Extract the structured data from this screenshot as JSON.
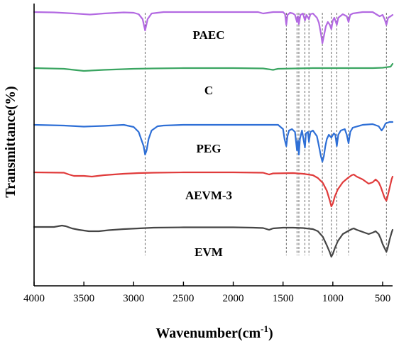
{
  "chart_data": {
    "type": "line",
    "title": "",
    "xlabel": "Wavenumber(cm",
    "xlabel_sup": "-1",
    "xlabel_close": ")",
    "ylabel": "Transmittance(%)",
    "xlim": [
      4000,
      400
    ],
    "x_reversed": true,
    "xticks": [
      "4000",
      "3500",
      "3000",
      "2500",
      "2000",
      "1500",
      "1000",
      "500"
    ],
    "grid": false,
    "legend": "inline-labels",
    "guide_lines_wavenumber": [
      2885,
      1467,
      1360,
      1341,
      1280,
      1240,
      1105,
      1015,
      960,
      842,
      462
    ],
    "series": [
      {
        "name": "PAEC",
        "color": "#b36ae2",
        "baseline": 17,
        "points": [
          [
            4000,
            0
          ],
          [
            3800,
            0.5
          ],
          [
            3600,
            2
          ],
          [
            3440,
            3.5
          ],
          [
            3300,
            2
          ],
          [
            3100,
            0.5
          ],
          [
            3000,
            1
          ],
          [
            2950,
            3
          ],
          [
            2910,
            10
          ],
          [
            2885,
            26
          ],
          [
            2860,
            10
          ],
          [
            2820,
            2
          ],
          [
            2700,
            0
          ],
          [
            2500,
            0
          ],
          [
            2000,
            0
          ],
          [
            1750,
            0
          ],
          [
            1700,
            2
          ],
          [
            1650,
            1
          ],
          [
            1600,
            0
          ],
          [
            1500,
            0
          ],
          [
            1480,
            3
          ],
          [
            1467,
            18
          ],
          [
            1455,
            4
          ],
          [
            1430,
            1
          ],
          [
            1400,
            2
          ],
          [
            1380,
            4
          ],
          [
            1360,
            14
          ],
          [
            1350,
            6
          ],
          [
            1341,
            17
          ],
          [
            1325,
            4
          ],
          [
            1300,
            2
          ],
          [
            1280,
            12
          ],
          [
            1265,
            4
          ],
          [
            1240,
            10
          ],
          [
            1225,
            3
          ],
          [
            1200,
            2
          ],
          [
            1160,
            8
          ],
          [
            1140,
            15
          ],
          [
            1120,
            30
          ],
          [
            1105,
            44
          ],
          [
            1090,
            34
          ],
          [
            1070,
            20
          ],
          [
            1050,
            14
          ],
          [
            1030,
            18
          ],
          [
            1015,
            24
          ],
          [
            1000,
            12
          ],
          [
            985,
            8
          ],
          [
            960,
            18
          ],
          [
            945,
            8
          ],
          [
            900,
            3
          ],
          [
            860,
            6
          ],
          [
            842,
            14
          ],
          [
            825,
            4
          ],
          [
            800,
            2
          ],
          [
            700,
            0
          ],
          [
            600,
            0
          ],
          [
            530,
            6
          ],
          [
            500,
            4
          ],
          [
            480,
            10
          ],
          [
            462,
            18
          ],
          [
            445,
            8
          ],
          [
            420,
            6
          ],
          [
            400,
            4
          ]
        ]
      },
      {
        "name": "C",
        "color": "#3aa561",
        "baseline": 96,
        "points": [
          [
            4000,
            0
          ],
          [
            3700,
            1
          ],
          [
            3500,
            4
          ],
          [
            3300,
            2.5
          ],
          [
            3000,
            1
          ],
          [
            2800,
            0.5
          ],
          [
            2500,
            0
          ],
          [
            2000,
            0
          ],
          [
            1700,
            0.5
          ],
          [
            1600,
            2.5
          ],
          [
            1550,
            1
          ],
          [
            1200,
            0
          ],
          [
            1000,
            0
          ],
          [
            800,
            0
          ],
          [
            600,
            0
          ],
          [
            500,
            -0.5
          ],
          [
            420,
            -2
          ],
          [
            400,
            -6
          ]
        ]
      },
      {
        "name": "PEG",
        "color": "#2e6fd6",
        "baseline": 176,
        "points": [
          [
            4000,
            0
          ],
          [
            3700,
            1
          ],
          [
            3500,
            2.5
          ],
          [
            3300,
            1.5
          ],
          [
            3100,
            0
          ],
          [
            3000,
            3
          ],
          [
            2950,
            10
          ],
          [
            2920,
            22
          ],
          [
            2900,
            30
          ],
          [
            2885,
            42
          ],
          [
            2870,
            36
          ],
          [
            2850,
            20
          ],
          [
            2820,
            8
          ],
          [
            2760,
            2
          ],
          [
            2700,
            1
          ],
          [
            2500,
            0
          ],
          [
            2000,
            0
          ],
          [
            1700,
            0
          ],
          [
            1550,
            0
          ],
          [
            1500,
            6
          ],
          [
            1485,
            20
          ],
          [
            1467,
            30
          ],
          [
            1455,
            16
          ],
          [
            1440,
            8
          ],
          [
            1410,
            6
          ],
          [
            1380,
            10
          ],
          [
            1360,
            36
          ],
          [
            1350,
            22
          ],
          [
            1341,
            42
          ],
          [
            1330,
            20
          ],
          [
            1310,
            8
          ],
          [
            1280,
            32
          ],
          [
            1270,
            12
          ],
          [
            1250,
            10
          ],
          [
            1240,
            24
          ],
          [
            1225,
            10
          ],
          [
            1200,
            8
          ],
          [
            1160,
            16
          ],
          [
            1145,
            26
          ],
          [
            1120,
            44
          ],
          [
            1105,
            52
          ],
          [
            1090,
            44
          ],
          [
            1075,
            30
          ],
          [
            1060,
            20
          ],
          [
            1040,
            14
          ],
          [
            1015,
            18
          ],
          [
            990,
            12
          ],
          [
            975,
            14
          ],
          [
            960,
            30
          ],
          [
            945,
            14
          ],
          [
            920,
            8
          ],
          [
            880,
            6
          ],
          [
            860,
            14
          ],
          [
            842,
            26
          ],
          [
            825,
            10
          ],
          [
            800,
            4
          ],
          [
            700,
            0
          ],
          [
            600,
            -1
          ],
          [
            540,
            2
          ],
          [
            510,
            8
          ],
          [
            490,
            4
          ],
          [
            470,
            -2
          ],
          [
            430,
            -4
          ],
          [
            400,
            -4
          ]
        ]
      },
      {
        "name": "AEVM-3",
        "color": "#e03b3b",
        "baseline": 243,
        "points": [
          [
            4000,
            0
          ],
          [
            3700,
            0.5
          ],
          [
            3650,
            3
          ],
          [
            3600,
            5
          ],
          [
            3500,
            5
          ],
          [
            3420,
            6
          ],
          [
            3300,
            4
          ],
          [
            3100,
            2
          ],
          [
            2950,
            1
          ],
          [
            2800,
            0.5
          ],
          [
            2500,
            0
          ],
          [
            2300,
            0
          ],
          [
            2000,
            0
          ],
          [
            1700,
            0.5
          ],
          [
            1640,
            3
          ],
          [
            1600,
            1.5
          ],
          [
            1400,
            1
          ],
          [
            1300,
            2
          ],
          [
            1200,
            4
          ],
          [
            1150,
            8
          ],
          [
            1100,
            15
          ],
          [
            1060,
            26
          ],
          [
            1030,
            40
          ],
          [
            1015,
            48
          ],
          [
            1000,
            44
          ],
          [
            980,
            34
          ],
          [
            950,
            24
          ],
          [
            900,
            14
          ],
          [
            850,
            8
          ],
          [
            810,
            4
          ],
          [
            790,
            3
          ],
          [
            760,
            6
          ],
          [
            700,
            10
          ],
          [
            640,
            16
          ],
          [
            600,
            14
          ],
          [
            570,
            10
          ],
          [
            540,
            14
          ],
          [
            520,
            20
          ],
          [
            500,
            28
          ],
          [
            480,
            36
          ],
          [
            462,
            40
          ],
          [
            450,
            34
          ],
          [
            430,
            22
          ],
          [
            410,
            10
          ],
          [
            400,
            6
          ]
        ]
      },
      {
        "name": "EVM",
        "color": "#454545",
        "baseline": 320,
        "points": [
          [
            4000,
            0
          ],
          [
            3800,
            0
          ],
          [
            3720,
            -2
          ],
          [
            3680,
            -1
          ],
          [
            3620,
            2
          ],
          [
            3550,
            4
          ],
          [
            3450,
            6
          ],
          [
            3350,
            6
          ],
          [
            3250,
            4.5
          ],
          [
            3100,
            3
          ],
          [
            2950,
            2
          ],
          [
            2800,
            1
          ],
          [
            2500,
            0.5
          ],
          [
            2300,
            0.5
          ],
          [
            2000,
            0.5
          ],
          [
            1800,
            1
          ],
          [
            1700,
            1.5
          ],
          [
            1640,
            4
          ],
          [
            1600,
            2
          ],
          [
            1500,
            1
          ],
          [
            1400,
            1
          ],
          [
            1300,
            1.5
          ],
          [
            1200,
            3
          ],
          [
            1150,
            6
          ],
          [
            1100,
            14
          ],
          [
            1060,
            26
          ],
          [
            1030,
            36
          ],
          [
            1015,
            42
          ],
          [
            1000,
            38
          ],
          [
            980,
            30
          ],
          [
            950,
            20
          ],
          [
            900,
            10
          ],
          [
            850,
            6
          ],
          [
            810,
            3
          ],
          [
            790,
            2
          ],
          [
            760,
            4
          ],
          [
            700,
            7
          ],
          [
            640,
            10
          ],
          [
            600,
            8
          ],
          [
            570,
            6
          ],
          [
            540,
            10
          ],
          [
            520,
            16
          ],
          [
            500,
            24
          ],
          [
            480,
            30
          ],
          [
            462,
            35
          ],
          [
            450,
            30
          ],
          [
            430,
            18
          ],
          [
            410,
            8
          ],
          [
            400,
            4
          ]
        ]
      }
    ],
    "series_labels": [
      {
        "text": "PAEC",
        "color": "#b36ae2"
      },
      {
        "text": "C",
        "color": "#3aa561"
      },
      {
        "text": "PEG",
        "color": "#2e6fd6"
      },
      {
        "text": "AEVM-3",
        "color": "#e03b3b"
      },
      {
        "text": "EVM",
        "color": "#454545"
      }
    ]
  }
}
